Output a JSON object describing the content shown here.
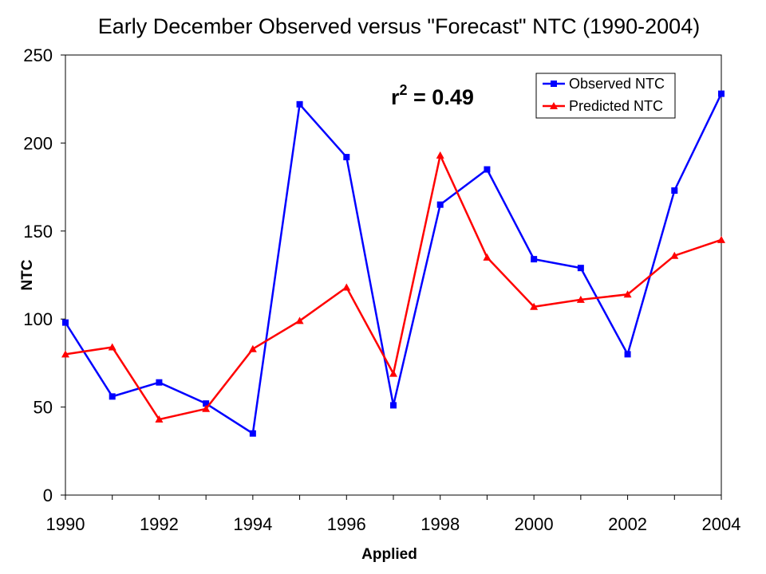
{
  "chart_data": {
    "type": "line",
    "title": "Early December Observed versus \"Forecast\" NTC (1990-2004)",
    "xlabel": "Applied",
    "ylabel": "NTC",
    "x": [
      1990,
      1991,
      1992,
      1993,
      1994,
      1995,
      1996,
      1997,
      1998,
      1999,
      2000,
      2001,
      2002,
      2003,
      2004
    ],
    "x_tick_labels": [
      "1990",
      "1992",
      "1994",
      "1996",
      "1998",
      "2000",
      "2002",
      "2004"
    ],
    "y_tick_labels": [
      "0",
      "50",
      "100",
      "150",
      "200",
      "250"
    ],
    "xlim": [
      1990,
      2004
    ],
    "ylim": [
      0,
      250
    ],
    "grid": false,
    "legend_position": "top-right",
    "annotation": {
      "base": "r",
      "superscript": "2",
      "rest": " = 0.49"
    },
    "series": [
      {
        "name": "Observed NTC",
        "color": "#0000ff",
        "marker": "square",
        "values": [
          98,
          56,
          64,
          52,
          35,
          222,
          192,
          51,
          165,
          185,
          134,
          129,
          80,
          173,
          228
        ]
      },
      {
        "name": "Predicted NTC",
        "color": "#ff0000",
        "marker": "triangle",
        "values": [
          80,
          84,
          43,
          49,
          83,
          99,
          118,
          69,
          193,
          135,
          107,
          111,
          114,
          136,
          145
        ]
      }
    ]
  }
}
